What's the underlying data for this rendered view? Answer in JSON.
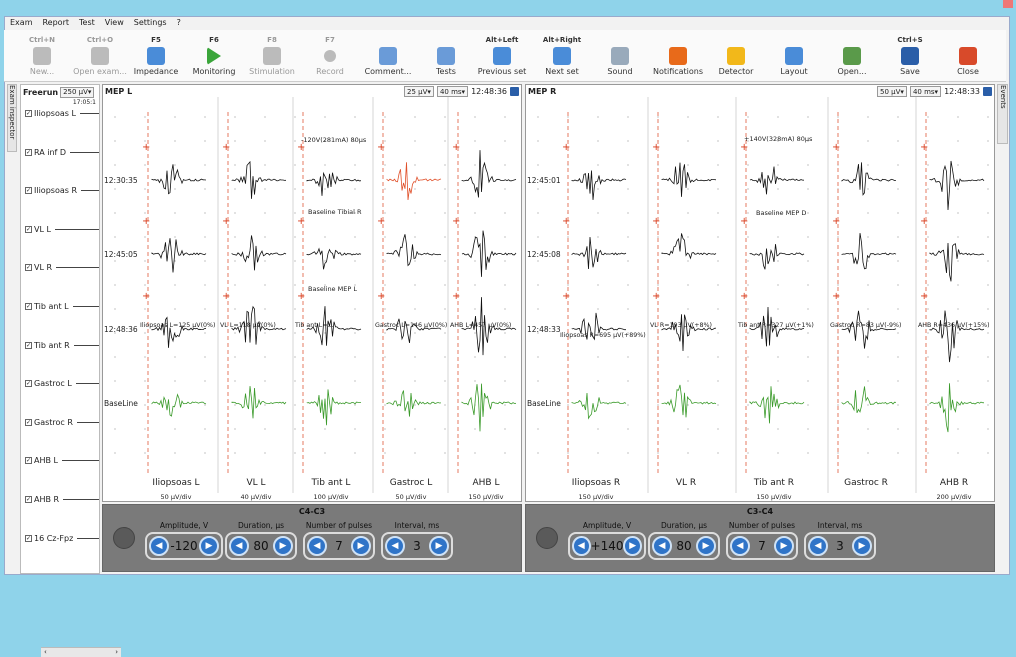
{
  "menu": [
    "Exam",
    "Report",
    "Test",
    "View",
    "Settings",
    "?"
  ],
  "toolbar": [
    {
      "shortcut": "Ctrl+N",
      "label": "New...",
      "icon": "new-icon",
      "disabled": true,
      "color": "#bbb"
    },
    {
      "shortcut": "Ctrl+O",
      "label": "Open exam...",
      "icon": "open-exam-icon",
      "disabled": true,
      "color": "#bbb"
    },
    {
      "shortcut": "F5",
      "label": "Impedance",
      "icon": "impedance-icon",
      "disabled": false,
      "color": "#4a8cd8"
    },
    {
      "shortcut": "F6",
      "label": "Monitoring",
      "icon": "play-icon",
      "disabled": false,
      "color": "#3aa53a"
    },
    {
      "shortcut": "F8",
      "label": "Stimulation",
      "icon": "stimulation-icon",
      "disabled": true,
      "color": "#bbb"
    },
    {
      "shortcut": "F7",
      "label": "Record",
      "icon": "record-icon",
      "disabled": true,
      "color": "#bbb"
    },
    {
      "shortcut": "",
      "label": "Comment...",
      "icon": "comment-icon",
      "disabled": false,
      "color": "#6a9bd8"
    },
    {
      "shortcut": "",
      "label": "Tests",
      "icon": "tests-icon",
      "disabled": false,
      "color": "#6a9bd8"
    },
    {
      "shortcut": "Alt+Left",
      "label": "Previous set",
      "icon": "previous-set-icon",
      "disabled": false,
      "color": "#4a8cd8"
    },
    {
      "shortcut": "Alt+Right",
      "label": "Next set",
      "icon": "next-set-icon",
      "disabled": false,
      "color": "#4a8cd8"
    },
    {
      "shortcut": "",
      "label": "Sound",
      "icon": "sound-icon",
      "disabled": false,
      "color": "#9ab"
    },
    {
      "shortcut": "",
      "label": "Notifications",
      "icon": "notifications-icon",
      "disabled": false,
      "color": "#e86a1a"
    },
    {
      "shortcut": "",
      "label": "Detector",
      "icon": "detector-icon",
      "disabled": false,
      "color": "#f2b81a"
    },
    {
      "shortcut": "",
      "label": "Layout",
      "icon": "layout-icon",
      "disabled": false,
      "color": "#4a8cd8"
    },
    {
      "shortcut": "",
      "label": "Open...",
      "icon": "open-icon",
      "disabled": false,
      "color": "#5a9a4a"
    },
    {
      "shortcut": "Ctrl+S",
      "label": "Save",
      "icon": "save-icon",
      "disabled": false,
      "color": "#2a5ea8"
    },
    {
      "shortcut": "",
      "label": "Close",
      "icon": "close-icon",
      "disabled": false,
      "color": "#d84a2a"
    }
  ],
  "exam_inspector_tab": "Exam inspector",
  "events_tab": "Events",
  "freerun": {
    "title": "Freerun",
    "gain": "250 µV",
    "time": "17:05:1",
    "channels": [
      "Iliopsoas L",
      "RA inf D",
      "Iliopsoas R",
      "VL L",
      "VL R",
      "Tib ant L",
      "Tib ant R",
      "Gastroc L",
      "Gastroc R",
      "AHB L",
      "AHB R",
      "16 Cz-Fpz"
    ]
  },
  "panels": [
    {
      "title": "MEP L",
      "gain": "25 µV",
      "timebase": "40 ms",
      "time": "12:48:36",
      "row_times": [
        "12:30:35",
        "12:45:05",
        "12:48:36"
      ],
      "baseline": "BaseLine",
      "channels": [
        "Iliopsoas L",
        "VL L",
        "Tib ant L",
        "Gastroc L",
        "AHB L"
      ],
      "scales": [
        "50 µV/div",
        "40 µV/div",
        "100 µV/div",
        "50 µV/div",
        "150 µV/div"
      ],
      "annotations": [
        "-120V(281mA) 80µs",
        "Baseline Tibial R",
        "Baseline MEP L"
      ],
      "measures": [
        "Iliopsoas L=125 µV(0%)",
        "VL L=118 µV(0%)",
        "Tib ant L=...",
        "Gastroc L=146 µV(0%)",
        "AHB L=457 µV(0%)"
      ]
    },
    {
      "title": "MEP R",
      "gain": "50 µV",
      "timebase": "40 ms",
      "time": "12:48:33",
      "row_times": [
        "12:45:01",
        "12:45:08",
        "12:48:33"
      ],
      "baseline": "BaseLine",
      "channels": [
        "Iliopsoas R",
        "VL R",
        "Tib ant R",
        "Gastroc R",
        "AHB R"
      ],
      "scales": [
        "150 µV/div",
        "",
        "150 µV/div",
        "",
        "200 µV/div"
      ],
      "annotations": [
        "+140V(328mA) 80µs",
        "Baseline MEP D"
      ],
      "measures": [
        "Iliopsoas R=695 µV(+89%)",
        "VL R=193 µV(+8%)",
        "Tib ant R=327 µV(+1%)",
        "Gastroc R=83 µV(-9%)",
        "AHB R=436 µV(+15%)"
      ]
    }
  ],
  "controls": [
    {
      "title": "C4-C3",
      "amplitude": "-120",
      "duration": "80",
      "pulses": "7",
      "interval": "3"
    },
    {
      "title": "C3-C4",
      "amplitude": "+140",
      "duration": "80",
      "pulses": "7",
      "interval": "3"
    }
  ],
  "control_labels": {
    "amplitude": "Amplitude, V",
    "duration": "Duration, µs",
    "pulses": "Number of pulses",
    "interval": "Interval, ms"
  },
  "colors": {
    "trace": "#111111",
    "baseline": "#3a9a2a",
    "highlight": "#e0502a",
    "marker": "#d83a1a",
    "dashed": "#e05a3a"
  }
}
